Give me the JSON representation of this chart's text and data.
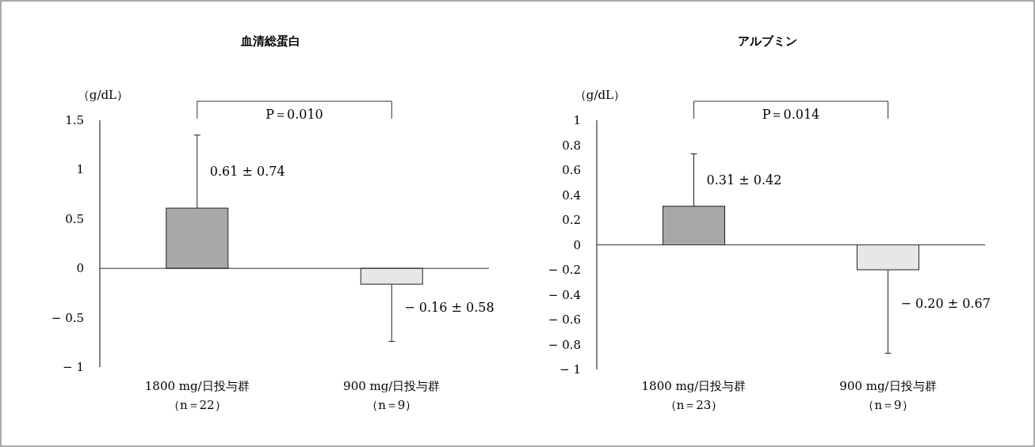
{
  "chart_data": [
    {
      "type": "bar",
      "title": "血清総蛋白",
      "ylabel": "（g/dL）",
      "categories": [
        "1800 mg/日投与群（n＝22）",
        "900 mg/日投与群（n＝9）"
      ],
      "values": [
        0.61,
        -0.16
      ],
      "colors": [
        "#a7a8aa",
        "#e6e7e8"
      ],
      "errors": [
        [
          0.61,
          1.35
        ],
        [
          -0.74,
          -0.16
        ]
      ],
      "ylim": [
        -1,
        1.5
      ],
      "yticks": [
        {
          "value": 1.5,
          "label": "1.5"
        },
        {
          "value": 1,
          "label": "1"
        },
        {
          "value": 0.5,
          "label": "0.5"
        },
        {
          "value": 0,
          "label": "0"
        },
        {
          "value": -0.5,
          "label": "− 0.5"
        },
        {
          "value": -1,
          "label": "− 1"
        }
      ],
      "annotations": [
        "P＝0.010",
        {
          "text": "0.61 ± 0.74",
          "x": "1800 mg/日投与群（n＝22）",
          "y": 0.61
        },
        {
          "text": "− 0.16 ± 0.58",
          "x": "900 mg/日投与群（n＝9）",
          "y": -0.16
        }
      ]
    },
    {
      "type": "bar",
      "title": "アルブミン",
      "ylabel": "（g/dL）",
      "categories": [
        "1800 mg/日投与群（n＝23）",
        "900 mg/日投与群（n＝9）"
      ],
      "values": [
        0.31,
        -0.2
      ],
      "colors": [
        "#a7a8aa",
        "#e6e7e8"
      ],
      "errors": [
        [
          0.31,
          0.73
        ],
        [
          -0.87,
          -0.2
        ]
      ],
      "ylim": [
        -1,
        1
      ],
      "yticks": [
        {
          "value": 1,
          "label": "1"
        },
        {
          "value": 0.8,
          "label": "0.8"
        },
        {
          "value": 0.6,
          "label": "0.6"
        },
        {
          "value": 0.4,
          "label": "0.4"
        },
        {
          "value": 0.2,
          "label": "0.2"
        },
        {
          "value": 0,
          "label": "0"
        },
        {
          "value": -0.2,
          "label": "− 0.2"
        },
        {
          "value": -0.4,
          "label": "− 0.4"
        },
        {
          "value": -0.6,
          "label": "− 0.6"
        },
        {
          "value": -0.8,
          "label": "− 0.8"
        },
        {
          "value": -1,
          "label": "− 1"
        }
      ],
      "annotations": [
        "P＝0.014",
        {
          "text": "0.31 ± 0.42",
          "x": "1800 mg/日投与群（n＝23）",
          "y": 0.31
        },
        {
          "text": "− 0.20 ± 0.67",
          "x": "900 mg/日投与群（n＝9）",
          "y": -0.2
        }
      ]
    }
  ]
}
